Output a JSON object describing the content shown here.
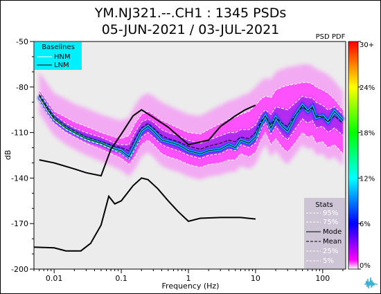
{
  "title_line1": "YM.NJ321.--.CH1 : 1345 PSDs",
  "title_line2": "05-JUN-2021 / 03-JUL-2021",
  "colorbar_title": "PSD PDF",
  "colors": {
    "plot_bg": "#ececec",
    "baseline_box": "#00f0ff",
    "stats_box": "#cdc5d5",
    "magenta": "#ff33ff"
  },
  "chart_data": {
    "type": "heatmap",
    "xlabel": "Frequency (Hz)",
    "ylabel": "dB",
    "xscale": "log",
    "xlim": [
      0.005,
      220
    ],
    "ylim": [
      -200,
      -50
    ],
    "xticks": [
      {
        "v": 0.01,
        "label": "0.01"
      },
      {
        "v": 0.1,
        "label": "0.1"
      },
      {
        "v": 1,
        "label": "1"
      },
      {
        "v": 10,
        "label": "10"
      },
      {
        "v": 100,
        "label": "100"
      }
    ],
    "yticks": [
      -50,
      -80,
      -110,
      -140,
      -170,
      -200
    ],
    "colorbar_ticks": [
      "30+",
      "24%",
      "18%",
      "12%",
      "6%",
      "0%"
    ],
    "baselines_legend": {
      "title": "Baselines",
      "items": [
        "HNM",
        "LNM"
      ]
    },
    "stats_legend": {
      "title": "Stats",
      "items": [
        "95%",
        "75%",
        "Mode",
        "Mean",
        "25%",
        "5%"
      ]
    },
    "nhnm": [
      [
        0.006,
        -128
      ],
      [
        0.01,
        -130
      ],
      [
        0.02,
        -134
      ],
      [
        0.03,
        -136.5
      ],
      [
        0.05,
        -138.5
      ],
      [
        0.07,
        -121
      ],
      [
        0.1,
        -111
      ],
      [
        0.15,
        -99
      ],
      [
        0.2,
        -95
      ],
      [
        0.3,
        -100
      ],
      [
        0.5,
        -106.5
      ],
      [
        1,
        -118
      ],
      [
        2,
        -115
      ],
      [
        3,
        -106
      ],
      [
        5,
        -99
      ],
      [
        7,
        -95
      ],
      [
        10,
        -92
      ]
    ],
    "nlnm": [
      [
        0.005,
        -185.5
      ],
      [
        0.01,
        -186
      ],
      [
        0.015,
        -188
      ],
      [
        0.025,
        -188
      ],
      [
        0.035,
        -183
      ],
      [
        0.05,
        -171
      ],
      [
        0.065,
        -152
      ],
      [
        0.08,
        -157
      ],
      [
        0.1,
        -155
      ],
      [
        0.15,
        -145
      ],
      [
        0.2,
        -140
      ],
      [
        0.25,
        -141
      ],
      [
        0.35,
        -147
      ],
      [
        0.5,
        -155
      ],
      [
        0.7,
        -162
      ],
      [
        1,
        -168.5
      ],
      [
        1.5,
        -166.5
      ],
      [
        3,
        -166
      ],
      [
        6,
        -166
      ],
      [
        10,
        -167
      ]
    ],
    "mode": [
      [
        0.006,
        -86
      ],
      [
        0.008,
        -95
      ],
      [
        0.01,
        -101
      ],
      [
        0.015,
        -107
      ],
      [
        0.02,
        -110
      ],
      [
        0.03,
        -114
      ],
      [
        0.05,
        -117
      ],
      [
        0.08,
        -121
      ],
      [
        0.1,
        -122
      ],
      [
        0.13,
        -126
      ],
      [
        0.16,
        -118
      ],
      [
        0.2,
        -109
      ],
      [
        0.25,
        -106
      ],
      [
        0.3,
        -109
      ],
      [
        0.4,
        -115
      ],
      [
        0.5,
        -116
      ],
      [
        0.7,
        -118
      ],
      [
        1,
        -122
      ],
      [
        1.5,
        -124
      ],
      [
        2,
        -122
      ],
      [
        3,
        -121
      ],
      [
        4,
        -118
      ],
      [
        5,
        -120
      ],
      [
        6,
        -115
      ],
      [
        8,
        -117
      ],
      [
        10,
        -113
      ],
      [
        12,
        -104
      ],
      [
        14,
        -99
      ],
      [
        17,
        -107
      ],
      [
        20,
        -100
      ],
      [
        25,
        -106
      ],
      [
        30,
        -109
      ],
      [
        40,
        -98
      ],
      [
        50,
        -92
      ],
      [
        60,
        -96
      ],
      [
        70,
        -93
      ],
      [
        80,
        -100
      ],
      [
        100,
        -99
      ],
      [
        120,
        -103
      ],
      [
        150,
        -96
      ],
      [
        200,
        -102
      ]
    ],
    "mean": [
      [
        0.006,
        -85
      ],
      [
        0.008,
        -94
      ],
      [
        0.01,
        -100
      ],
      [
        0.015,
        -106
      ],
      [
        0.02,
        -109
      ],
      [
        0.03,
        -113
      ],
      [
        0.05,
        -116
      ],
      [
        0.08,
        -119
      ],
      [
        0.1,
        -120
      ],
      [
        0.13,
        -122
      ],
      [
        0.16,
        -114
      ],
      [
        0.2,
        -107
      ],
      [
        0.25,
        -104
      ],
      [
        0.3,
        -107
      ],
      [
        0.4,
        -112
      ],
      [
        0.5,
        -114
      ],
      [
        0.7,
        -116
      ],
      [
        1,
        -119
      ],
      [
        1.5,
        -121
      ],
      [
        2,
        -119
      ],
      [
        3,
        -117
      ],
      [
        4,
        -115
      ],
      [
        5,
        -116
      ],
      [
        6,
        -113
      ],
      [
        8,
        -114
      ],
      [
        10,
        -110
      ],
      [
        12,
        -103
      ],
      [
        14,
        -99
      ],
      [
        17,
        -105
      ],
      [
        20,
        -100
      ],
      [
        25,
        -104
      ],
      [
        30,
        -106
      ],
      [
        40,
        -98
      ],
      [
        50,
        -93
      ],
      [
        60,
        -96
      ],
      [
        70,
        -94
      ],
      [
        80,
        -99
      ],
      [
        100,
        -100
      ],
      [
        120,
        -103
      ],
      [
        150,
        -99
      ],
      [
        200,
        -104
      ]
    ],
    "p95": [
      [
        0.006,
        -82
      ],
      [
        0.008,
        -90
      ],
      [
        0.01,
        -96
      ],
      [
        0.015,
        -100
      ],
      [
        0.02,
        -103
      ],
      [
        0.03,
        -106
      ],
      [
        0.05,
        -110
      ],
      [
        0.08,
        -113
      ],
      [
        0.1,
        -114
      ],
      [
        0.13,
        -112
      ],
      [
        0.16,
        -104
      ],
      [
        0.2,
        -98
      ],
      [
        0.25,
        -96
      ],
      [
        0.3,
        -98
      ],
      [
        0.4,
        -102
      ],
      [
        0.5,
        -104
      ],
      [
        0.7,
        -107
      ],
      [
        1,
        -110
      ],
      [
        1.5,
        -111
      ],
      [
        2,
        -108
      ],
      [
        3,
        -104
      ],
      [
        4,
        -101
      ],
      [
        5,
        -100
      ],
      [
        6,
        -98
      ],
      [
        8,
        -96
      ],
      [
        10,
        -92
      ],
      [
        12,
        -88
      ],
      [
        14,
        -86
      ],
      [
        17,
        -87
      ],
      [
        20,
        -82
      ],
      [
        25,
        -80
      ],
      [
        30,
        -79
      ],
      [
        40,
        -78
      ],
      [
        50,
        -77
      ],
      [
        60,
        -77
      ],
      [
        70,
        -78
      ],
      [
        80,
        -80
      ],
      [
        100,
        -82
      ],
      [
        120,
        -84
      ],
      [
        150,
        -88
      ],
      [
        200,
        -95
      ]
    ],
    "p75": [
      [
        0.006,
        -84
      ],
      [
        0.008,
        -92
      ],
      [
        0.01,
        -98
      ],
      [
        0.015,
        -104
      ],
      [
        0.02,
        -107
      ],
      [
        0.03,
        -110
      ],
      [
        0.05,
        -113
      ],
      [
        0.08,
        -117
      ],
      [
        0.1,
        -118
      ],
      [
        0.13,
        -118
      ],
      [
        0.16,
        -110
      ],
      [
        0.2,
        -103
      ],
      [
        0.25,
        -101
      ],
      [
        0.3,
        -103
      ],
      [
        0.4,
        -108
      ],
      [
        0.5,
        -110
      ],
      [
        0.7,
        -112
      ],
      [
        1,
        -115
      ],
      [
        1.5,
        -117
      ],
      [
        2,
        -115
      ],
      [
        3,
        -112
      ],
      [
        4,
        -110
      ],
      [
        5,
        -110
      ],
      [
        6,
        -108
      ],
      [
        8,
        -108
      ],
      [
        10,
        -105
      ],
      [
        12,
        -98
      ],
      [
        14,
        -95
      ],
      [
        17,
        -98
      ],
      [
        20,
        -93
      ],
      [
        25,
        -94
      ],
      [
        30,
        -95
      ],
      [
        40,
        -90
      ],
      [
        50,
        -86
      ],
      [
        60,
        -87
      ],
      [
        70,
        -87
      ],
      [
        80,
        -90
      ],
      [
        100,
        -92
      ],
      [
        120,
        -95
      ],
      [
        150,
        -93
      ],
      [
        200,
        -98
      ]
    ],
    "p25": [
      [
        0.006,
        -87
      ],
      [
        0.008,
        -96
      ],
      [
        0.01,
        -102
      ],
      [
        0.015,
        -108
      ],
      [
        0.02,
        -111
      ],
      [
        0.03,
        -115
      ],
      [
        0.05,
        -118
      ],
      [
        0.08,
        -122
      ],
      [
        0.1,
        -124
      ],
      [
        0.13,
        -128
      ],
      [
        0.16,
        -121
      ],
      [
        0.2,
        -113
      ],
      [
        0.25,
        -110
      ],
      [
        0.3,
        -113
      ],
      [
        0.4,
        -118
      ],
      [
        0.5,
        -120
      ],
      [
        0.7,
        -122
      ],
      [
        1,
        -125
      ],
      [
        1.5,
        -127
      ],
      [
        2,
        -125
      ],
      [
        3,
        -124
      ],
      [
        4,
        -121
      ],
      [
        5,
        -122
      ],
      [
        6,
        -118
      ],
      [
        8,
        -120
      ],
      [
        10,
        -117
      ],
      [
        12,
        -108
      ],
      [
        14,
        -103
      ],
      [
        17,
        -111
      ],
      [
        20,
        -106
      ],
      [
        25,
        -112
      ],
      [
        30,
        -115
      ],
      [
        40,
        -107
      ],
      [
        50,
        -101
      ],
      [
        60,
        -104
      ],
      [
        70,
        -102
      ],
      [
        80,
        -107
      ],
      [
        100,
        -106
      ],
      [
        120,
        -110
      ],
      [
        150,
        -107
      ],
      [
        200,
        -112
      ]
    ],
    "p5": [
      [
        0.006,
        -89
      ],
      [
        0.008,
        -98
      ],
      [
        0.01,
        -104
      ],
      [
        0.015,
        -110
      ],
      [
        0.02,
        -113
      ],
      [
        0.03,
        -117
      ],
      [
        0.05,
        -121
      ],
      [
        0.08,
        -125
      ],
      [
        0.1,
        -127
      ],
      [
        0.13,
        -131
      ],
      [
        0.16,
        -126
      ],
      [
        0.2,
        -118
      ],
      [
        0.25,
        -115
      ],
      [
        0.3,
        -118
      ],
      [
        0.4,
        -124
      ],
      [
        0.5,
        -126
      ],
      [
        0.7,
        -128
      ],
      [
        1,
        -131
      ],
      [
        1.5,
        -133
      ],
      [
        2,
        -131
      ],
      [
        3,
        -130
      ],
      [
        4,
        -128
      ],
      [
        5,
        -128
      ],
      [
        6,
        -124
      ],
      [
        8,
        -126
      ],
      [
        10,
        -123
      ],
      [
        12,
        -115
      ],
      [
        14,
        -110
      ],
      [
        17,
        -118
      ],
      [
        20,
        -114
      ],
      [
        25,
        -120
      ],
      [
        30,
        -123
      ],
      [
        40,
        -116
      ],
      [
        50,
        -110
      ],
      [
        60,
        -113
      ],
      [
        70,
        -112
      ],
      [
        80,
        -117
      ],
      [
        100,
        -116
      ],
      [
        120,
        -120
      ],
      [
        150,
        -118
      ],
      [
        200,
        -124
      ]
    ]
  }
}
